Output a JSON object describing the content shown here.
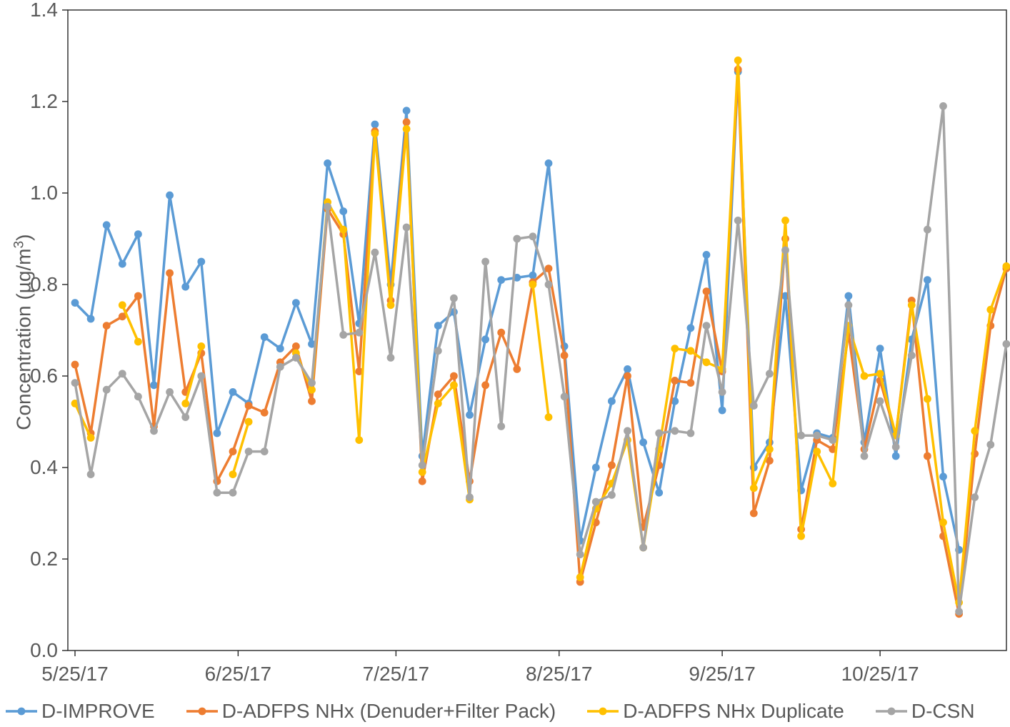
{
  "chart_data": {
    "type": "line",
    "title": "",
    "xlabel": "",
    "ylabel_pre": "Concentration (µg/m",
    "ylabel_sup": "3",
    "ylabel_post": ")",
    "ylim": [
      0.0,
      1.4
    ],
    "y_tick_labels": [
      "0.0",
      "0.2",
      "0.4",
      "0.6",
      "0.8",
      "1.0",
      "1.2",
      "1.4"
    ],
    "x_tick_labels": [
      "5/25/17",
      "6/25/17",
      "7/25/17",
      "8/25/17",
      "9/25/17",
      "10/25/17"
    ],
    "x_tick_day_offsets": [
      0,
      31,
      61,
      92,
      123,
      153
    ],
    "grid": false,
    "legend_position": "bottom",
    "x_start_date": "5/25/17",
    "x_interval_days": 3,
    "x": [
      "5/25",
      "5/28",
      "5/31",
      "6/3",
      "6/6",
      "6/9",
      "6/12",
      "6/15",
      "6/18",
      "6/21",
      "6/24",
      "6/27",
      "6/30",
      "7/3",
      "7/6",
      "7/9",
      "7/12",
      "7/15",
      "7/18",
      "7/21",
      "7/24",
      "7/27",
      "7/30",
      "8/2",
      "8/5",
      "8/8",
      "8/11",
      "8/14",
      "8/17",
      "8/20",
      "8/23",
      "8/26",
      "8/29",
      "9/1",
      "9/4",
      "9/7",
      "9/10",
      "9/13",
      "9/16",
      "9/19",
      "9/22",
      "9/25",
      "9/28",
      "10/1",
      "10/4",
      "10/7",
      "10/10",
      "10/13",
      "10/16",
      "10/19",
      "10/22",
      "10/25",
      "10/28",
      "10/31",
      "11/3",
      "11/6",
      "11/9",
      "11/12",
      "11/15",
      "11/18"
    ],
    "series": [
      {
        "name": "D-IMPROVE",
        "color": "#5B9BD5",
        "values": [
          0.76,
          0.725,
          0.93,
          0.845,
          0.91,
          0.58,
          0.995,
          0.795,
          0.85,
          0.475,
          0.565,
          0.54,
          0.685,
          0.66,
          0.76,
          0.67,
          1.065,
          0.96,
          0.715,
          1.15,
          0.8,
          1.18,
          0.425,
          0.71,
          0.74,
          0.515,
          0.68,
          0.81,
          0.815,
          0.82,
          1.065,
          0.665,
          0.24,
          0.4,
          0.545,
          0.615,
          0.455,
          0.345,
          0.545,
          0.705,
          0.865,
          0.525,
          1.265,
          0.4,
          0.455,
          0.775,
          0.35,
          0.475,
          0.465,
          0.775,
          0.455,
          0.66,
          0.425,
          0.68,
          0.81,
          0.38,
          0.22,
          null,
          null,
          null
        ]
      },
      {
        "name": "D-ADFPS NHx (Denuder+Filter Pack)",
        "color": "#ED7D31",
        "values": [
          0.625,
          0.475,
          0.71,
          0.73,
          0.775,
          0.49,
          0.825,
          0.565,
          0.65,
          0.37,
          0.435,
          0.535,
          0.52,
          0.63,
          0.665,
          0.545,
          0.965,
          0.91,
          0.61,
          1.135,
          0.765,
          1.155,
          0.37,
          0.56,
          0.6,
          0.37,
          0.58,
          0.695,
          0.615,
          0.805,
          0.835,
          0.645,
          0.15,
          0.28,
          0.405,
          0.6,
          0.27,
          0.405,
          0.59,
          0.585,
          0.785,
          0.61,
          1.27,
          0.3,
          0.415,
          0.9,
          0.265,
          0.46,
          0.44,
          0.695,
          0.44,
          0.59,
          0.47,
          0.765,
          0.425,
          0.25,
          0.08,
          0.43,
          0.71,
          0.835
        ]
      },
      {
        "name": "D-ADFPS NHx Duplicate",
        "color": "#FFC000",
        "values": [
          0.54,
          0.465,
          null,
          0.755,
          0.675,
          null,
          null,
          0.54,
          0.665,
          null,
          0.385,
          0.5,
          null,
          null,
          0.65,
          0.57,
          0.98,
          0.92,
          0.46,
          1.13,
          0.755,
          1.14,
          0.39,
          0.54,
          0.58,
          0.33,
          null,
          null,
          null,
          0.8,
          0.51,
          null,
          0.16,
          0.31,
          0.365,
          0.46,
          0.225,
          0.44,
          0.66,
          0.655,
          0.63,
          0.615,
          1.29,
          0.355,
          0.44,
          0.94,
          0.25,
          0.435,
          0.365,
          0.71,
          0.6,
          0.605,
          0.47,
          0.755,
          0.55,
          0.28,
          0.105,
          0.48,
          0.745,
          0.84
        ]
      },
      {
        "name": "D-CSN",
        "color": "#A5A5A5",
        "values": [
          0.585,
          0.385,
          0.57,
          0.605,
          0.555,
          0.48,
          0.565,
          0.51,
          0.6,
          0.345,
          0.345,
          0.435,
          0.435,
          0.62,
          0.64,
          0.585,
          0.97,
          0.69,
          0.695,
          0.87,
          0.64,
          0.925,
          0.405,
          0.655,
          0.77,
          0.335,
          0.85,
          0.49,
          0.9,
          0.905,
          0.8,
          0.555,
          0.21,
          0.325,
          0.34,
          0.48,
          0.225,
          0.475,
          0.48,
          0.475,
          0.71,
          0.565,
          0.94,
          0.535,
          0.605,
          0.875,
          0.47,
          0.47,
          0.46,
          0.755,
          0.425,
          0.545,
          0.445,
          0.645,
          0.92,
          1.19,
          0.085,
          0.335,
          0.45,
          0.67
        ]
      }
    ],
    "colors": {
      "axis": "#262626",
      "tick_text": "#595959"
    }
  }
}
